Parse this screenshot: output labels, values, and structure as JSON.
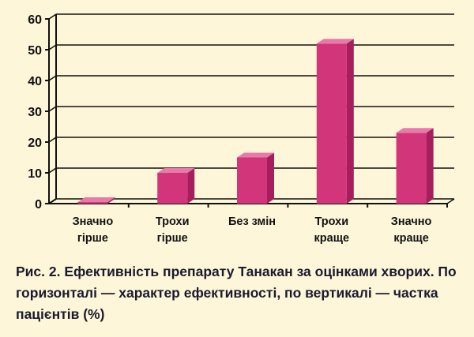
{
  "caption": "Рис. 2. Ефективність препарату Танакан за оцінками хворих. По горизонталі — характер ефективності, по вертикалі — частка пацієнтів (%)",
  "colors": {
    "bar_front": "#d2357a",
    "bar_side": "#a61e5b",
    "bar_top": "#e77aa9",
    "background": "#fdf6d9",
    "grid": "#111111"
  },
  "chart_data": {
    "type": "bar",
    "categories": [
      [
        "Значно",
        "гірше"
      ],
      [
        "Трохи",
        "гірше"
      ],
      [
        "Без змін"
      ],
      [
        "Трохи",
        "краще"
      ],
      [
        "Значно",
        "краще"
      ]
    ],
    "values": [
      0.5,
      10,
      15,
      52,
      23
    ],
    "yticks": [
      0,
      10,
      20,
      30,
      40,
      50,
      60
    ],
    "ylim": [
      0,
      60
    ],
    "grid": true,
    "style": "3d"
  }
}
